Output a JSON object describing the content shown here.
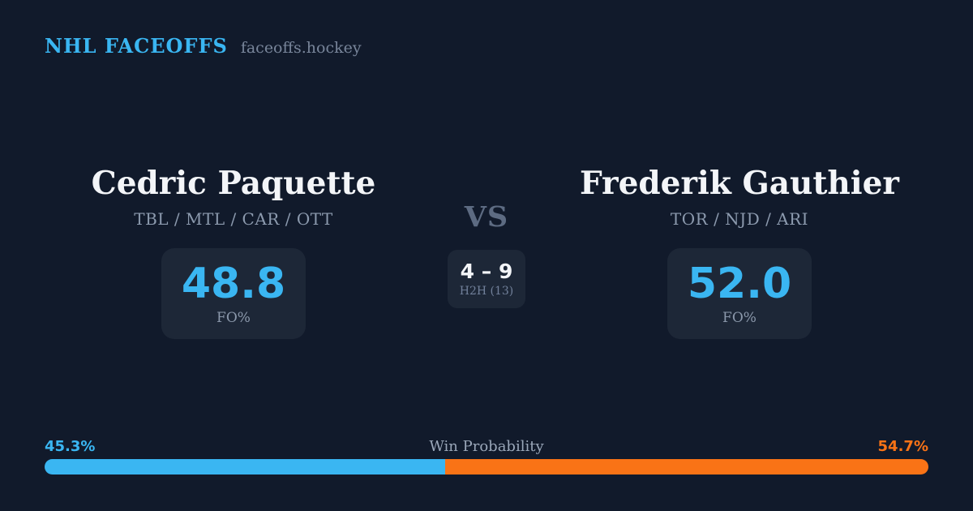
{
  "header": {
    "brand": "NHL FACEOFFS",
    "site": "faceoffs.hockey"
  },
  "players": [
    {
      "name": "Cedric Paquette",
      "teams": "TBL / MTL / CAR / OTT",
      "fo_value": "48.8",
      "fo_label": "FO%",
      "win_prob_label": "45.3%"
    },
    {
      "name": "Frederik Gauthier",
      "teams": "TOR / NJD / ARI",
      "fo_value": "52.0",
      "fo_label": "FO%",
      "win_prob_label": "54.7%"
    }
  ],
  "matchup": {
    "vs_label": "VS",
    "h2h_score": "4 – 9",
    "h2h_sub": "H2H (13)"
  },
  "win_probability": {
    "title": "Win Probability",
    "left_value": 45.3,
    "right_value": 54.7,
    "left_color": "#3ab6f2",
    "right_color": "#f97316"
  },
  "colors": {
    "background": "#111a2b",
    "panel": "#1d2737",
    "accent_blue": "#3ab6f2",
    "accent_orange": "#f97316",
    "text_primary": "#f3f5f8",
    "text_muted": "#8c9aae"
  }
}
